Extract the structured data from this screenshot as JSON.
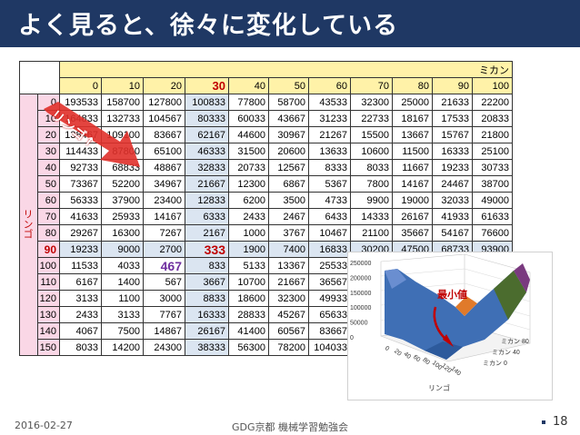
{
  "title": "よく見ると、徐々に変化している",
  "table": {
    "mikan_label": "ミカン",
    "ringo_label": "リンゴ",
    "columns": [
      "0",
      "10",
      "20",
      "30",
      "40",
      "50",
      "60",
      "70",
      "80",
      "90",
      "100"
    ],
    "rows": [
      {
        "label": "0",
        "values": [
          "193533",
          "158700",
          "127800",
          "100833",
          "77800",
          "58700",
          "43533",
          "32300",
          "25000",
          "21633",
          "22200"
        ]
      },
      {
        "label": "10",
        "values": [
          "164833",
          "132733",
          "104567",
          "80333",
          "60033",
          "43667",
          "31233",
          "22733",
          "18167",
          "17533",
          "20833"
        ]
      },
      {
        "label": "20",
        "values": [
          "138467",
          "109100",
          "83667",
          "62167",
          "44600",
          "30967",
          "21267",
          "15500",
          "13667",
          "15767",
          "21800"
        ]
      },
      {
        "label": "30",
        "values": [
          "114433",
          "87800",
          "65100",
          "46333",
          "31500",
          "20600",
          "13633",
          "10600",
          "11500",
          "16333",
          "25100"
        ]
      },
      {
        "label": "40",
        "values": [
          "92733",
          "68833",
          "48867",
          "32833",
          "20733",
          "12567",
          "8333",
          "8033",
          "11667",
          "19233",
          "30733"
        ]
      },
      {
        "label": "50",
        "values": [
          "73367",
          "52200",
          "34967",
          "21667",
          "12300",
          "6867",
          "5367",
          "7800",
          "14167",
          "24467",
          "38700"
        ]
      },
      {
        "label": "60",
        "values": [
          "56333",
          "37900",
          "23400",
          "12833",
          "6200",
          "3500",
          "4733",
          "9900",
          "19000",
          "32033",
          "49000"
        ]
      },
      {
        "label": "70",
        "values": [
          "41633",
          "25933",
          "14167",
          "6333",
          "2433",
          "2467",
          "6433",
          "14333",
          "26167",
          "41933",
          "61633"
        ]
      },
      {
        "label": "80",
        "values": [
          "29267",
          "16300",
          "7267",
          "2167",
          "1000",
          "3767",
          "10467",
          "21100",
          "35667",
          "54167",
          "76600"
        ]
      },
      {
        "label": "90",
        "values": [
          "19233",
          "9000",
          "2700",
          "333",
          "1900",
          "7400",
          "16833",
          "30200",
          "47500",
          "68733",
          "93900"
        ]
      },
      {
        "label": "100",
        "values": [
          "11533",
          "4033",
          "467",
          "833",
          "5133",
          "13367",
          "25533"
        ]
      },
      {
        "label": "110",
        "values": [
          "6167",
          "1400",
          "567",
          "3667",
          "10700",
          "21667",
          "36567"
        ]
      },
      {
        "label": "120",
        "values": [
          "3133",
          "1100",
          "3000",
          "8833",
          "18600",
          "32300",
          "49933"
        ]
      },
      {
        "label": "130",
        "values": [
          "2433",
          "3133",
          "7767",
          "16333",
          "28833",
          "45267",
          "65633"
        ]
      },
      {
        "label": "140",
        "values": [
          "4067",
          "7500",
          "14867",
          "26167",
          "41400",
          "60567",
          "83667"
        ]
      },
      {
        "label": "150",
        "values": [
          "8033",
          "14200",
          "24300",
          "38333",
          "56300",
          "78200",
          "104033"
        ]
      }
    ]
  },
  "arrow_label": "リンゴ↑",
  "chart": {
    "min_label": "最小値",
    "z_ticks": [
      "250000",
      "200000",
      "150000",
      "100000",
      "50000",
      "0"
    ],
    "x_ticks": [
      "0",
      "20",
      "40",
      "60",
      "80",
      "100",
      "120",
      "140"
    ],
    "x_label": "リンゴ",
    "y_ticks": [
      "ミカン 80",
      "ミカン 40",
      "ミカン 0"
    ]
  },
  "footer": {
    "date": "2016-02-27",
    "center": "GDG京都 機械学習勉強会",
    "page": "18"
  },
  "colors": {
    "title_bg": "#1f3864",
    "header_yellow": "#fff2a8",
    "header_pink": "#fad7e6",
    "highlight_blue": "#dbe5f1",
    "accent_red": "#c00000",
    "accent_purple": "#7030a0"
  }
}
